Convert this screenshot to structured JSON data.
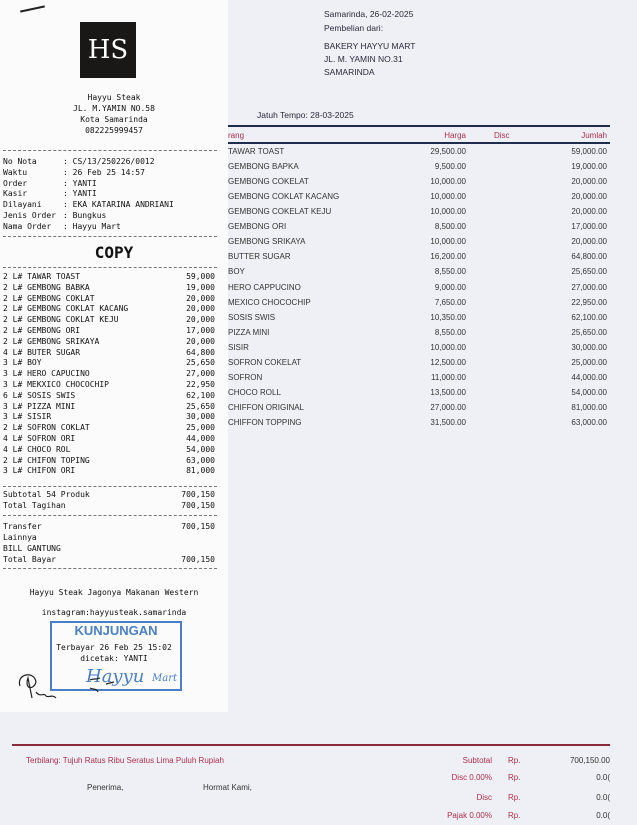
{
  "invoice": {
    "date_line": "Samarinda, 26-02-2025",
    "from_label": "Pembelian dari:",
    "supplier": [
      "BAKERY HAYYU MART",
      "JL. M. YAMIN NO.31",
      "SAMARINDA"
    ],
    "due": "Jatuh Tempo: 28-03-2025",
    "columns": {
      "name": "rang",
      "harga": "Harga",
      "disc": "Disc",
      "jumlah": "Jumlah"
    },
    "rows": [
      {
        "name": "TAWAR TOAST",
        "harga": "29,500.00",
        "jumlah": "59,000.00"
      },
      {
        "name": "GEMBONG BAPKA",
        "harga": "9,500.00",
        "jumlah": "19,000.00"
      },
      {
        "name": "GEMBONG COKELAT",
        "harga": "10,000.00",
        "jumlah": "20,000.00"
      },
      {
        "name": "GEMBONG COKLAT KACANG",
        "harga": "10,000.00",
        "jumlah": "20,000.00"
      },
      {
        "name": "GEMBONG COKELAT KEJU",
        "harga": "10,000.00",
        "jumlah": "20,000.00"
      },
      {
        "name": "GEMBONG ORI",
        "harga": "8,500.00",
        "jumlah": "17,000.00"
      },
      {
        "name": "GEMBONG SRIKAYA",
        "harga": "10,000.00",
        "jumlah": "20,000.00"
      },
      {
        "name": "BUTTER SUGAR",
        "harga": "16,200.00",
        "jumlah": "64,800.00"
      },
      {
        "name": "BOY",
        "harga": "8,550.00",
        "jumlah": "25,650.00"
      },
      {
        "name": "HERO CAPPUCINO",
        "harga": "9,000.00",
        "jumlah": "27,000.00"
      },
      {
        "name": "MEXICO CHOCOCHIP",
        "harga": "7,650.00",
        "jumlah": "22,950.00"
      },
      {
        "name": "SOSIS SWIS",
        "harga": "10,350.00",
        "jumlah": "62,100.00"
      },
      {
        "name": "PIZZA MINI",
        "harga": "8,550.00",
        "jumlah": "25,650.00"
      },
      {
        "name": "SISIR",
        "harga": "10,000.00",
        "jumlah": "30,000.00"
      },
      {
        "name": "SOFRON COKELAT",
        "harga": "12,500.00",
        "jumlah": "25,000.00"
      },
      {
        "name": "SOFRON",
        "harga": "11,000.00",
        "jumlah": "44,000.00"
      },
      {
        "name": "CHOCO ROLL",
        "harga": "13,500.00",
        "jumlah": "54,000.00"
      },
      {
        "name": "CHIFFON ORIGINAL",
        "harga": "27,000.00",
        "jumlah": "81,000.00"
      },
      {
        "name": "CHIFFON TOPPING",
        "harga": "31,500.00",
        "jumlah": "63,000.00"
      }
    ],
    "terbilang": "Terbilang: Tujuh Ratus Ribu Seratus Lima Puluh Rupiah",
    "penerima": "Penerima,",
    "hormat": "Hormat Kami,",
    "totals": [
      {
        "label": "Subtotal",
        "rp": "Rp.",
        "value": "700,150.00"
      },
      {
        "label": "Disc  0.00%",
        "rp": "Rp.",
        "value": "0.0("
      },
      {
        "label": "Disc",
        "rp": "Rp.",
        "value": "0.0("
      },
      {
        "label": "Pajak  0.00%",
        "rp": "Rp.",
        "value": "0.0("
      }
    ]
  },
  "receipt": {
    "logo": "HS",
    "store": [
      "Hayyu Steak",
      "JL. M.YAMIN NO.58",
      "Kota Samarinda",
      "082225999457"
    ],
    "info": [
      {
        "k": "No Nota",
        "v": ": CS/13/250226/0012"
      },
      {
        "k": "Waktu",
        "v": ": 26 Feb 25 14:57"
      },
      {
        "k": "Order",
        "v": ": YANTI"
      },
      {
        "k": "Kasir",
        "v": ": YANTI"
      },
      {
        "k": "Dilayani",
        "v": ": EKA KATARINA ANDRIANI"
      },
      {
        "k": "Jenis Order",
        "v": ": Bungkus"
      },
      {
        "k": "Nama Order",
        "v": ": Hayyu Mart"
      }
    ],
    "copy": "COPY",
    "items": [
      {
        "n": "2 L# TAWAR TOAST",
        "p": "59,000"
      },
      {
        "n": "2 L# GEMBONG BABKA",
        "p": "19,000"
      },
      {
        "n": "2 L# GEMBONG COKLAT",
        "p": "20,000"
      },
      {
        "n": "2 L# GEMBONG COKLAT KACANG",
        "p": "20,000"
      },
      {
        "n": "2 L# GEMBONG COKLAT KEJU",
        "p": "20,000"
      },
      {
        "n": "2 L# GEMBONG ORI",
        "p": "17,000"
      },
      {
        "n": "2 L# GEMBONG SRIKAYA",
        "p": "20,000"
      },
      {
        "n": "4 L# BUTER SUGAR",
        "p": "64,800"
      },
      {
        "n": "3 L# BOY",
        "p": "25,650"
      },
      {
        "n": "3 L# HERO CAPUCINO",
        "p": "27,000"
      },
      {
        "n": "3 L# MEKXICO CHOCOCHIP",
        "p": "22,950"
      },
      {
        "n": "6 L# SOSIS SWIS",
        "p": "62,100"
      },
      {
        "n": "3 L# PIZZA MINI",
        "p": "25,650"
      },
      {
        "n": "3 L# SISIR",
        "p": "30,000"
      },
      {
        "n": "2 L# SOFRON COKLAT",
        "p": "25,000"
      },
      {
        "n": "4 L# SOFRON ORI",
        "p": "44,000"
      },
      {
        "n": "4 L# CHOCO ROL",
        "p": "54,000"
      },
      {
        "n": "2 L# CHIFON TOPING",
        "p": "63,000"
      },
      {
        "n": "3 L# CHIFON ORI",
        "p": "81,000"
      }
    ],
    "subtotal": {
      "n": "Subtotal 54 Produk",
      "p": "700,150"
    },
    "total_tagihan": {
      "n": "Total Tagihan",
      "p": "700,150"
    },
    "transfer": {
      "n": "Transfer",
      "p": "700,150"
    },
    "lainnya": "Lainnya",
    "bill": "BILL GANTUNG",
    "total_bayar": {
      "n": "Total Bayar",
      "p": "700,150"
    },
    "tagline": "Hayyu Steak Jagonya Makanan Western",
    "instagram": "instagram:hayyusteak.samarinda",
    "terbayar": "Terbayar  26 Feb 25 15:02",
    "dicetak": "dicetak: YANTI",
    "stamp": {
      "top": "KUNJUNGAN",
      "mid": "Hayyu",
      "sub": "Mart"
    }
  }
}
